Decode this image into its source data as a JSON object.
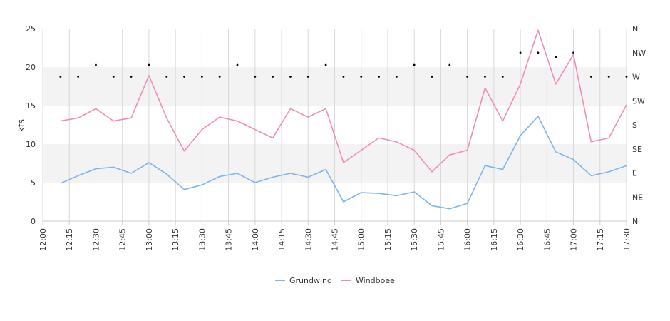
{
  "chart_data": {
    "type": "line",
    "ylabel": "kts",
    "ylim": [
      0,
      25
    ],
    "yticks": [
      "0",
      "5",
      "10",
      "15",
      "20",
      "25"
    ],
    "x_range": [
      "12:00",
      "17:30"
    ],
    "xticks": [
      "12:00",
      "12:15",
      "12:30",
      "12:45",
      "13:00",
      "13:15",
      "13:30",
      "13:45",
      "14:00",
      "14:15",
      "14:30",
      "14:45",
      "15:00",
      "15:15",
      "15:30",
      "15:45",
      "16:00",
      "16:15",
      "16:30",
      "16:45",
      "17:00",
      "17:15",
      "17:30"
    ],
    "direction_ticks": [
      "N",
      "NE",
      "E",
      "SE",
      "S",
      "SW",
      "W",
      "NW",
      "N"
    ],
    "grid": "vertical lines at ticks, alternating shaded bands 5-10 and 15-20",
    "x": [
      "12:10",
      "12:20",
      "12:30",
      "12:40",
      "12:50",
      "13:00",
      "13:10",
      "13:20",
      "13:30",
      "13:40",
      "13:50",
      "14:00",
      "14:10",
      "14:20",
      "14:30",
      "14:40",
      "14:50",
      "15:00",
      "15:10",
      "15:20",
      "15:30",
      "15:40",
      "15:50",
      "16:00",
      "16:10",
      "16:20",
      "16:30",
      "16:40",
      "16:50",
      "17:00",
      "17:10",
      "17:20",
      "17:30"
    ],
    "series": [
      {
        "name": "Grundwind",
        "color": "#7cb5ec",
        "values": [
          4.9,
          5.9,
          6.8,
          7.0,
          6.2,
          7.6,
          6.1,
          4.1,
          4.7,
          5.8,
          6.2,
          5.0,
          5.7,
          6.2,
          5.7,
          6.7,
          2.5,
          3.7,
          3.6,
          3.3,
          3.8,
          2.0,
          1.6,
          2.3,
          7.2,
          6.7,
          11.1,
          13.6,
          9.0,
          8.0,
          5.9,
          6.4,
          7.2
        ]
      },
      {
        "name": "Windboee",
        "color": "#f08cbc",
        "values": [
          13.0,
          13.4,
          14.6,
          13.0,
          13.4,
          18.9,
          13.4,
          9.1,
          11.9,
          13.5,
          13.0,
          11.9,
          10.8,
          14.6,
          13.5,
          14.6,
          7.6,
          9.2,
          10.8,
          10.3,
          9.2,
          6.4,
          8.6,
          9.2,
          17.3,
          13.0,
          17.8,
          24.8,
          17.8,
          21.6,
          10.3,
          10.8,
          15.1
        ]
      }
    ],
    "direction_degrees": [
      270,
      270,
      292,
      270,
      270,
      292,
      270,
      270,
      270,
      270,
      292,
      270,
      270,
      270,
      270,
      292,
      270,
      270,
      270,
      270,
      292,
      270,
      292,
      270,
      270,
      270,
      315,
      315,
      307,
      315,
      270,
      270,
      270
    ],
    "legend": "bottom-center"
  }
}
